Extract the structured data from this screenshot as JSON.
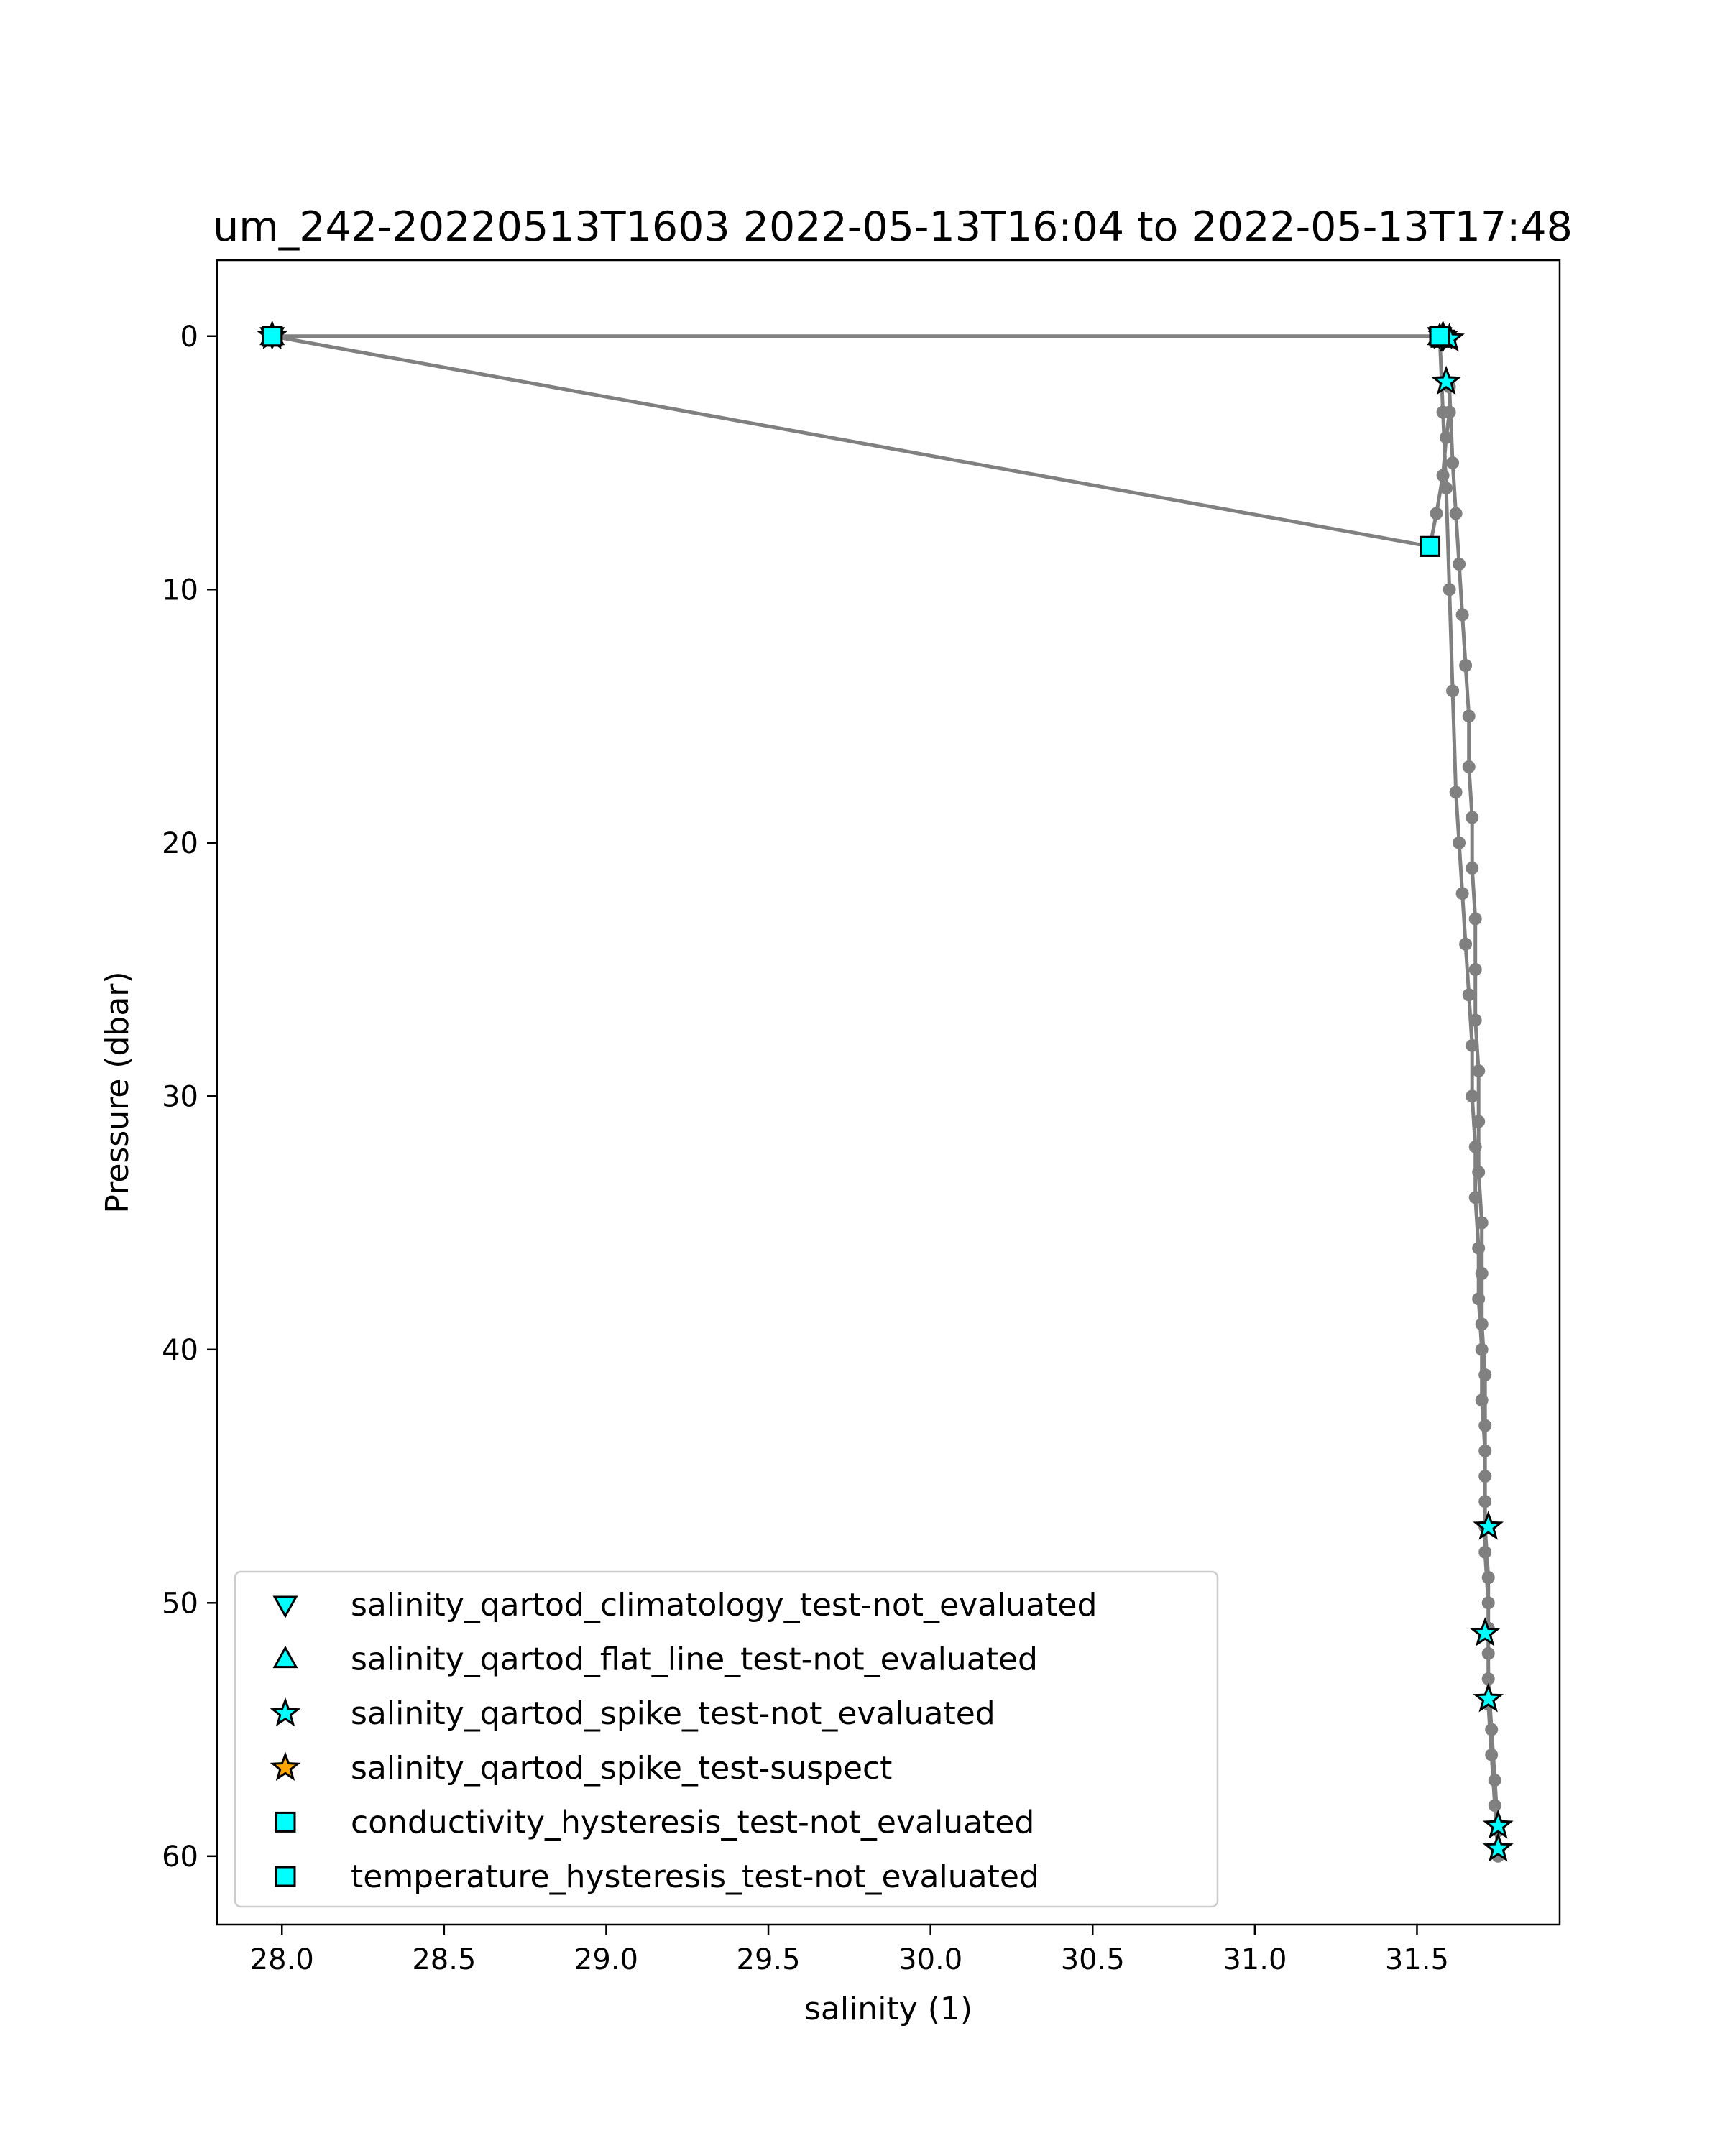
{
  "chart_data": {
    "type": "scatter",
    "title": "um_242-20220513T1603 2022-05-13T16:04 to 2022-05-13T17:48",
    "xlabel": "salinity (1)",
    "ylabel": "Pressure (dbar)",
    "xlim": [
      27.8,
      31.94
    ],
    "ylim": [
      62.7,
      -3.0
    ],
    "y_inverted": true,
    "grid": false,
    "legend_position": "lower left",
    "xticks": [
      28.0,
      28.5,
      29.0,
      29.5,
      30.0,
      30.5,
      31.0,
      31.5
    ],
    "xtick_labels": [
      "28.0",
      "28.5",
      "29.0",
      "29.5",
      "30.0",
      "30.5",
      "31.0",
      "31.5"
    ],
    "yticks": [
      0,
      10,
      20,
      30,
      40,
      50,
      60
    ],
    "ytick_labels": [
      "0",
      "10",
      "20",
      "30",
      "40",
      "50",
      "60"
    ],
    "profile": {
      "color": "#808080",
      "x": [
        31.57,
        27.97,
        31.54,
        31.56,
        31.58,
        31.59,
        31.6,
        31.6,
        31.61,
        31.62,
        31.63,
        31.64,
        31.65,
        31.66,
        31.66,
        31.67,
        31.67,
        31.68,
        31.68,
        31.68,
        31.69,
        31.69,
        31.69,
        31.7,
        31.7,
        31.7,
        31.71,
        31.71,
        31.71,
        31.71,
        31.72,
        31.72,
        31.72,
        31.73,
        31.74,
        31.75,
        31.75,
        31.74,
        31.73,
        31.72,
        31.72,
        31.72,
        31.71,
        31.71,
        31.71,
        31.7,
        31.7,
        31.69,
        31.69,
        31.68,
        31.68,
        31.67,
        31.67,
        31.66,
        31.65,
        31.64,
        31.63,
        31.62,
        31.61,
        31.6,
        31.59,
        31.58,
        31.57
      ],
      "y": [
        0.0,
        0.0,
        8.3,
        7.0,
        5.5,
        4.0,
        3.0,
        2.0,
        5.0,
        7.0,
        9.0,
        11.0,
        13.0,
        15.0,
        17.0,
        19.0,
        21.0,
        23.0,
        25.0,
        27.0,
        29.0,
        31.0,
        33.0,
        35.0,
        37.0,
        39.0,
        41.0,
        43.0,
        45.0,
        47.0,
        49.0,
        51.0,
        53.0,
        55.0,
        57.0,
        59.0,
        60.0,
        58.0,
        56.0,
        54.0,
        52.0,
        50.0,
        48.0,
        46.0,
        44.0,
        42.0,
        40.0,
        38.0,
        36.0,
        34.0,
        32.0,
        30.0,
        28.0,
        26.0,
        24.0,
        22.0,
        20.0,
        18.0,
        14.0,
        10.0,
        6.0,
        3.0,
        0.0
      ]
    },
    "series": [
      {
        "name": "salinity_qartod_climatology_test-not_evaluated",
        "marker": "triangle-down",
        "color": "#00ffff",
        "x": [
          27.97,
          31.57,
          31.58
        ],
        "y": [
          0.0,
          0.0,
          0.1
        ]
      },
      {
        "name": "salinity_qartod_flat_line_test-not_evaluated",
        "marker": "triangle-up",
        "color": "#00ffff",
        "x": [
          27.97,
          31.57,
          31.58
        ],
        "y": [
          0.0,
          0.0,
          0.1
        ]
      },
      {
        "name": "salinity_qartod_spike_test-not_evaluated",
        "marker": "star",
        "color": "#00ffff",
        "x": [
          27.97,
          31.58,
          31.6,
          31.59,
          31.72,
          31.71,
          31.72,
          31.75,
          31.75
        ],
        "y": [
          0.0,
          0.0,
          0.1,
          1.8,
          47.0,
          51.2,
          53.8,
          58.8,
          59.7
        ]
      },
      {
        "name": "salinity_qartod_spike_test-suspect",
        "marker": "star",
        "color": "#ffa500",
        "x": [],
        "y": []
      },
      {
        "name": "conductivity_hysteresis_test-not_evaluated",
        "marker": "square",
        "color": "#00ffff",
        "x": [
          27.97,
          31.57,
          31.54
        ],
        "y": [
          0.0,
          0.0,
          8.3
        ]
      },
      {
        "name": "temperature_hysteresis_test-not_evaluated",
        "marker": "square",
        "color": "#00ffff",
        "x": [
          27.97,
          31.57,
          31.54
        ],
        "y": [
          0.0,
          0.0,
          8.3
        ]
      }
    ]
  }
}
